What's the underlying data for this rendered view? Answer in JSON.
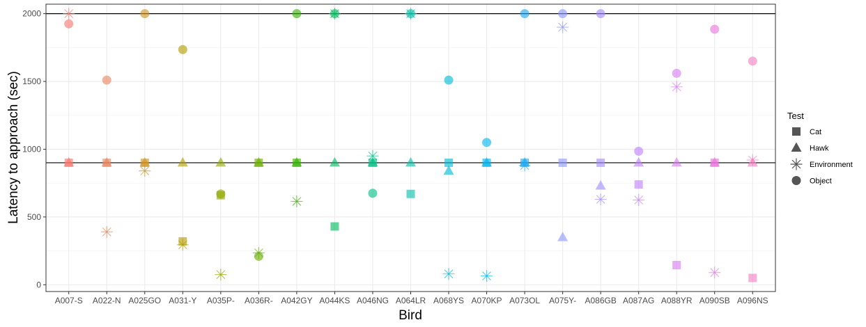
{
  "chart_data": {
    "type": "scatter",
    "xlabel": "Bird",
    "ylabel": "Latency to approach (sec)",
    "categories": [
      "A007-S",
      "A022-N",
      "A025GO",
      "A031-Y",
      "A035P-",
      "A036R-",
      "A042GY",
      "A044KS",
      "A046NG",
      "A064LR",
      "A068YS",
      "A070KP",
      "A073OL",
      "A075Y-",
      "A086GB",
      "A087AG",
      "A088YR",
      "A090SB",
      "A096NS"
    ],
    "colors": [
      "#F8766D",
      "#E58700",
      "#C99800",
      "#A3A500",
      "#6BB100",
      "#00BA38",
      "#00BF7D",
      "#00C0AF",
      "#00BCD8",
      "#00B0F6",
      "#619CFF",
      "#B983FF",
      "#E76BF3",
      "#FD61D1",
      "#FF67A4"
    ],
    "point_colors": [
      "#F8766D",
      "#E9845E",
      "#CE9420",
      "#B39D00",
      "#8FA800",
      "#6BAF00",
      "#33B300",
      "#00BA5A",
      "#00BF84",
      "#00C0A9",
      "#00BCD8",
      "#00B5EE",
      "#1EA9F0",
      "#8C97FF",
      "#A58AFF",
      "#C27FFF",
      "#D97AF0",
      "#E875DC",
      "#F27FC4"
    ],
    "ylim": [
      -50,
      2070
    ],
    "yticks": [
      0,
      500,
      1000,
      1500,
      2000
    ],
    "hlines": [
      900,
      2000
    ],
    "grid": true,
    "legend": {
      "title": "Test",
      "placement": "right",
      "entries": [
        {
          "label": "Cat",
          "shape": "square"
        },
        {
          "label": "Hawk",
          "shape": "triangle"
        },
        {
          "label": "Environment",
          "shape": "asterisk"
        },
        {
          "label": "Object",
          "shape": "circle"
        }
      ]
    },
    "series": [
      {
        "shape": "square",
        "values": [
          900,
          900,
          900,
          320,
          660,
          900,
          900,
          430,
          900,
          670,
          900,
          900,
          900,
          900,
          900,
          740,
          145,
          900,
          50
        ]
      },
      {
        "shape": "triangle",
        "values": [
          900,
          900,
          900,
          900,
          900,
          900,
          900,
          900,
          900,
          900,
          840,
          900,
          900,
          350,
          730,
          900,
          900,
          900,
          900
        ]
      },
      {
        "shape": "asterisk",
        "values": [
          2000,
          390,
          840,
          295,
          75,
          235,
          615,
          2000,
          950,
          2000,
          80,
          65,
          880,
          1900,
          630,
          625,
          1460,
          90,
          920
        ]
      },
      {
        "shape": "circle",
        "values": [
          1925,
          1510,
          2000,
          1735,
          670,
          210,
          2000,
          2000,
          675,
          2000,
          1510,
          1050,
          2000,
          2000,
          2000,
          985,
          1560,
          1885,
          1650
        ]
      }
    ]
  }
}
